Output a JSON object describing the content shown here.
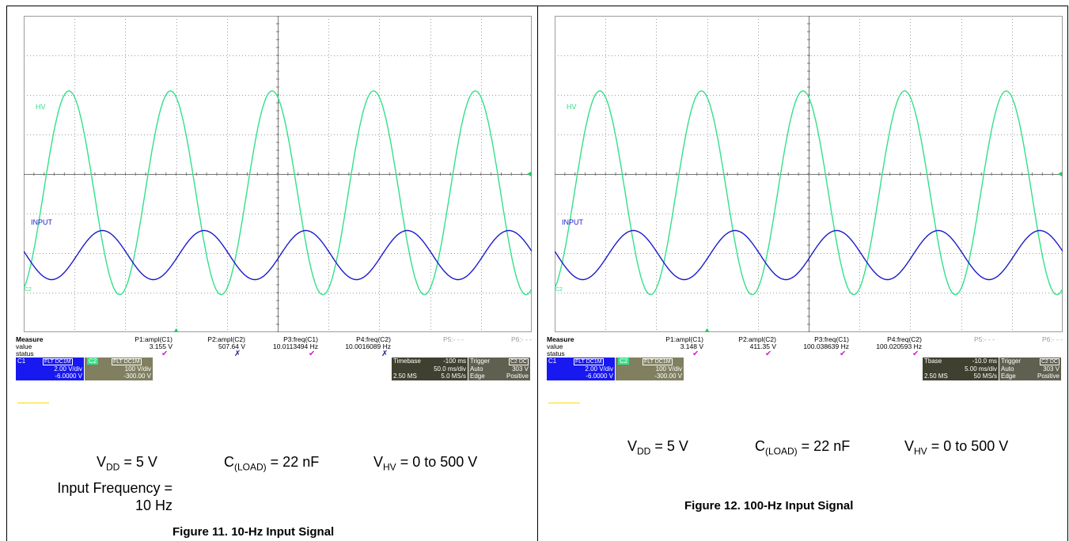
{
  "chart_data": [
    {
      "type": "line",
      "title": "Figure 11. 10-Hz Input Signal",
      "grid": true,
      "xlim_divisions": [
        0,
        10
      ],
      "ylim_divisions": [
        -4,
        4
      ],
      "series": [
        {
          "name": "HV",
          "color": "#33e08a",
          "kind": "rectified_sine",
          "periods": 5.0,
          "phase": 0.0,
          "top_div": 2.1,
          "bottom_div": -3.05
        },
        {
          "name": "INPUT",
          "color": "#1a1acc",
          "kind": "sine",
          "periods": 5.0,
          "phase": 0.0,
          "center_div": -2.05,
          "amp_div": 0.62
        }
      ],
      "labels": {
        "hv": "HV",
        "input": "INPUT",
        "c1_marker": "C1",
        "c2_marker": "C2"
      },
      "measure": {
        "header": "Measure",
        "row_value": "value",
        "row_status": "status",
        "cols": [
          {
            "name": "P1:ampl(C1)",
            "value": "3.155 V",
            "status": "check"
          },
          {
            "name": "P2:ampl(C2)",
            "value": "507.64 V",
            "status": "cross"
          },
          {
            "name": "P3:freq(C1)",
            "value": "10.0113494 Hz",
            "status": "check"
          },
          {
            "name": "P4:freq(C2)",
            "value": "10.0016089 Hz",
            "status": "cross"
          },
          {
            "name": "P5:- - -",
            "value": "",
            "status": ""
          },
          {
            "name": "P6:- - -",
            "value": "",
            "status": ""
          }
        ]
      },
      "channels": {
        "c1": {
          "id": "C1",
          "tags": "FLT DC1M",
          "vdiv": "2.00 V/div",
          "offset": "-6.0000 V"
        },
        "c2": {
          "id": "C2",
          "tags": "FLT DC1M",
          "vdiv": "100 V/div",
          "offset": "-300.00 V"
        }
      },
      "timebase": {
        "label": "Timebase",
        "delay": "-100 ms",
        "div": "50.0 ms/div",
        "samples": "2.50 MS",
        "rate": "5.0 MS/s"
      },
      "trigger": {
        "label": "Trigger",
        "tag": "C2 DC",
        "mode": "Auto",
        "level": "303 V",
        "type": "Edge",
        "slope": "Positive"
      }
    },
    {
      "type": "line",
      "title": "Figure 12. 100-Hz Input Signal",
      "grid": true,
      "xlim_divisions": [
        0,
        10
      ],
      "ylim_divisions": [
        -4,
        4
      ],
      "series": [
        {
          "name": "HV",
          "color": "#33e08a",
          "kind": "rectified_sine",
          "periods": 5.0,
          "phase": 0.0,
          "top_div": 2.1,
          "bottom_div": -3.05
        },
        {
          "name": "INPUT",
          "color": "#1a1acc",
          "kind": "sine",
          "periods": 5.0,
          "phase": 0.0,
          "center_div": -2.05,
          "amp_div": 0.62
        }
      ],
      "labels": {
        "hv": "HV",
        "input": "INPUT",
        "c1_marker": "C1",
        "c2_marker": "C2"
      },
      "measure": {
        "header": "Measure",
        "row_value": "value",
        "row_status": "status",
        "cols": [
          {
            "name": "P1:ampl(C1)",
            "value": "3.148 V",
            "status": "check"
          },
          {
            "name": "P2:ampl(C2)",
            "value": "411.35 V",
            "status": "check"
          },
          {
            "name": "P3:freq(C1)",
            "value": "100.038639 Hz",
            "status": "check"
          },
          {
            "name": "P4:freq(C2)",
            "value": "100.020593 Hz",
            "status": "check"
          },
          {
            "name": "P5:- - -",
            "value": "",
            "status": ""
          },
          {
            "name": "P6:- - -",
            "value": "",
            "status": ""
          }
        ]
      },
      "channels": {
        "c1": {
          "id": "C1",
          "tags": "FLT DC1M",
          "vdiv": "2.00 V/div",
          "offset": "-6.0000 V"
        },
        "c2": {
          "id": "C2",
          "tags": "FLT DC1M",
          "vdiv": "100 V/div",
          "offset": "-300.00 V"
        }
      },
      "timebase": {
        "label": "Tbase",
        "delay": "-10.0 ms",
        "div": "5.00 ms/div",
        "samples": "2.50 MS",
        "rate": "50 MS/s"
      },
      "trigger": {
        "label": "Trigger",
        "tag": "C2 DC",
        "mode": "Auto",
        "level": "303 V",
        "type": "Edge",
        "slope": "Positive"
      }
    }
  ],
  "conditions": {
    "vdd": {
      "sym": "V",
      "sub": "DD",
      "val": " = 5 V"
    },
    "cload": {
      "sym": "C",
      "sub": "(LOAD)",
      "val": " = 22 nF"
    },
    "vhv": {
      "sym": "V",
      "sub": "HV",
      "val": " = 0 to 500 V"
    },
    "freq_line1": "Input Frequency =",
    "freq_line2": "10 Hz"
  },
  "colors": {
    "hv": "#33e08a",
    "input": "#1a1acc",
    "grid": "#9c9c9c",
    "trigger_marker": "#22cc66",
    "c1_chip": "#1818f0",
    "c2_chip": "#808060",
    "yellow_line": "#ffd800"
  }
}
